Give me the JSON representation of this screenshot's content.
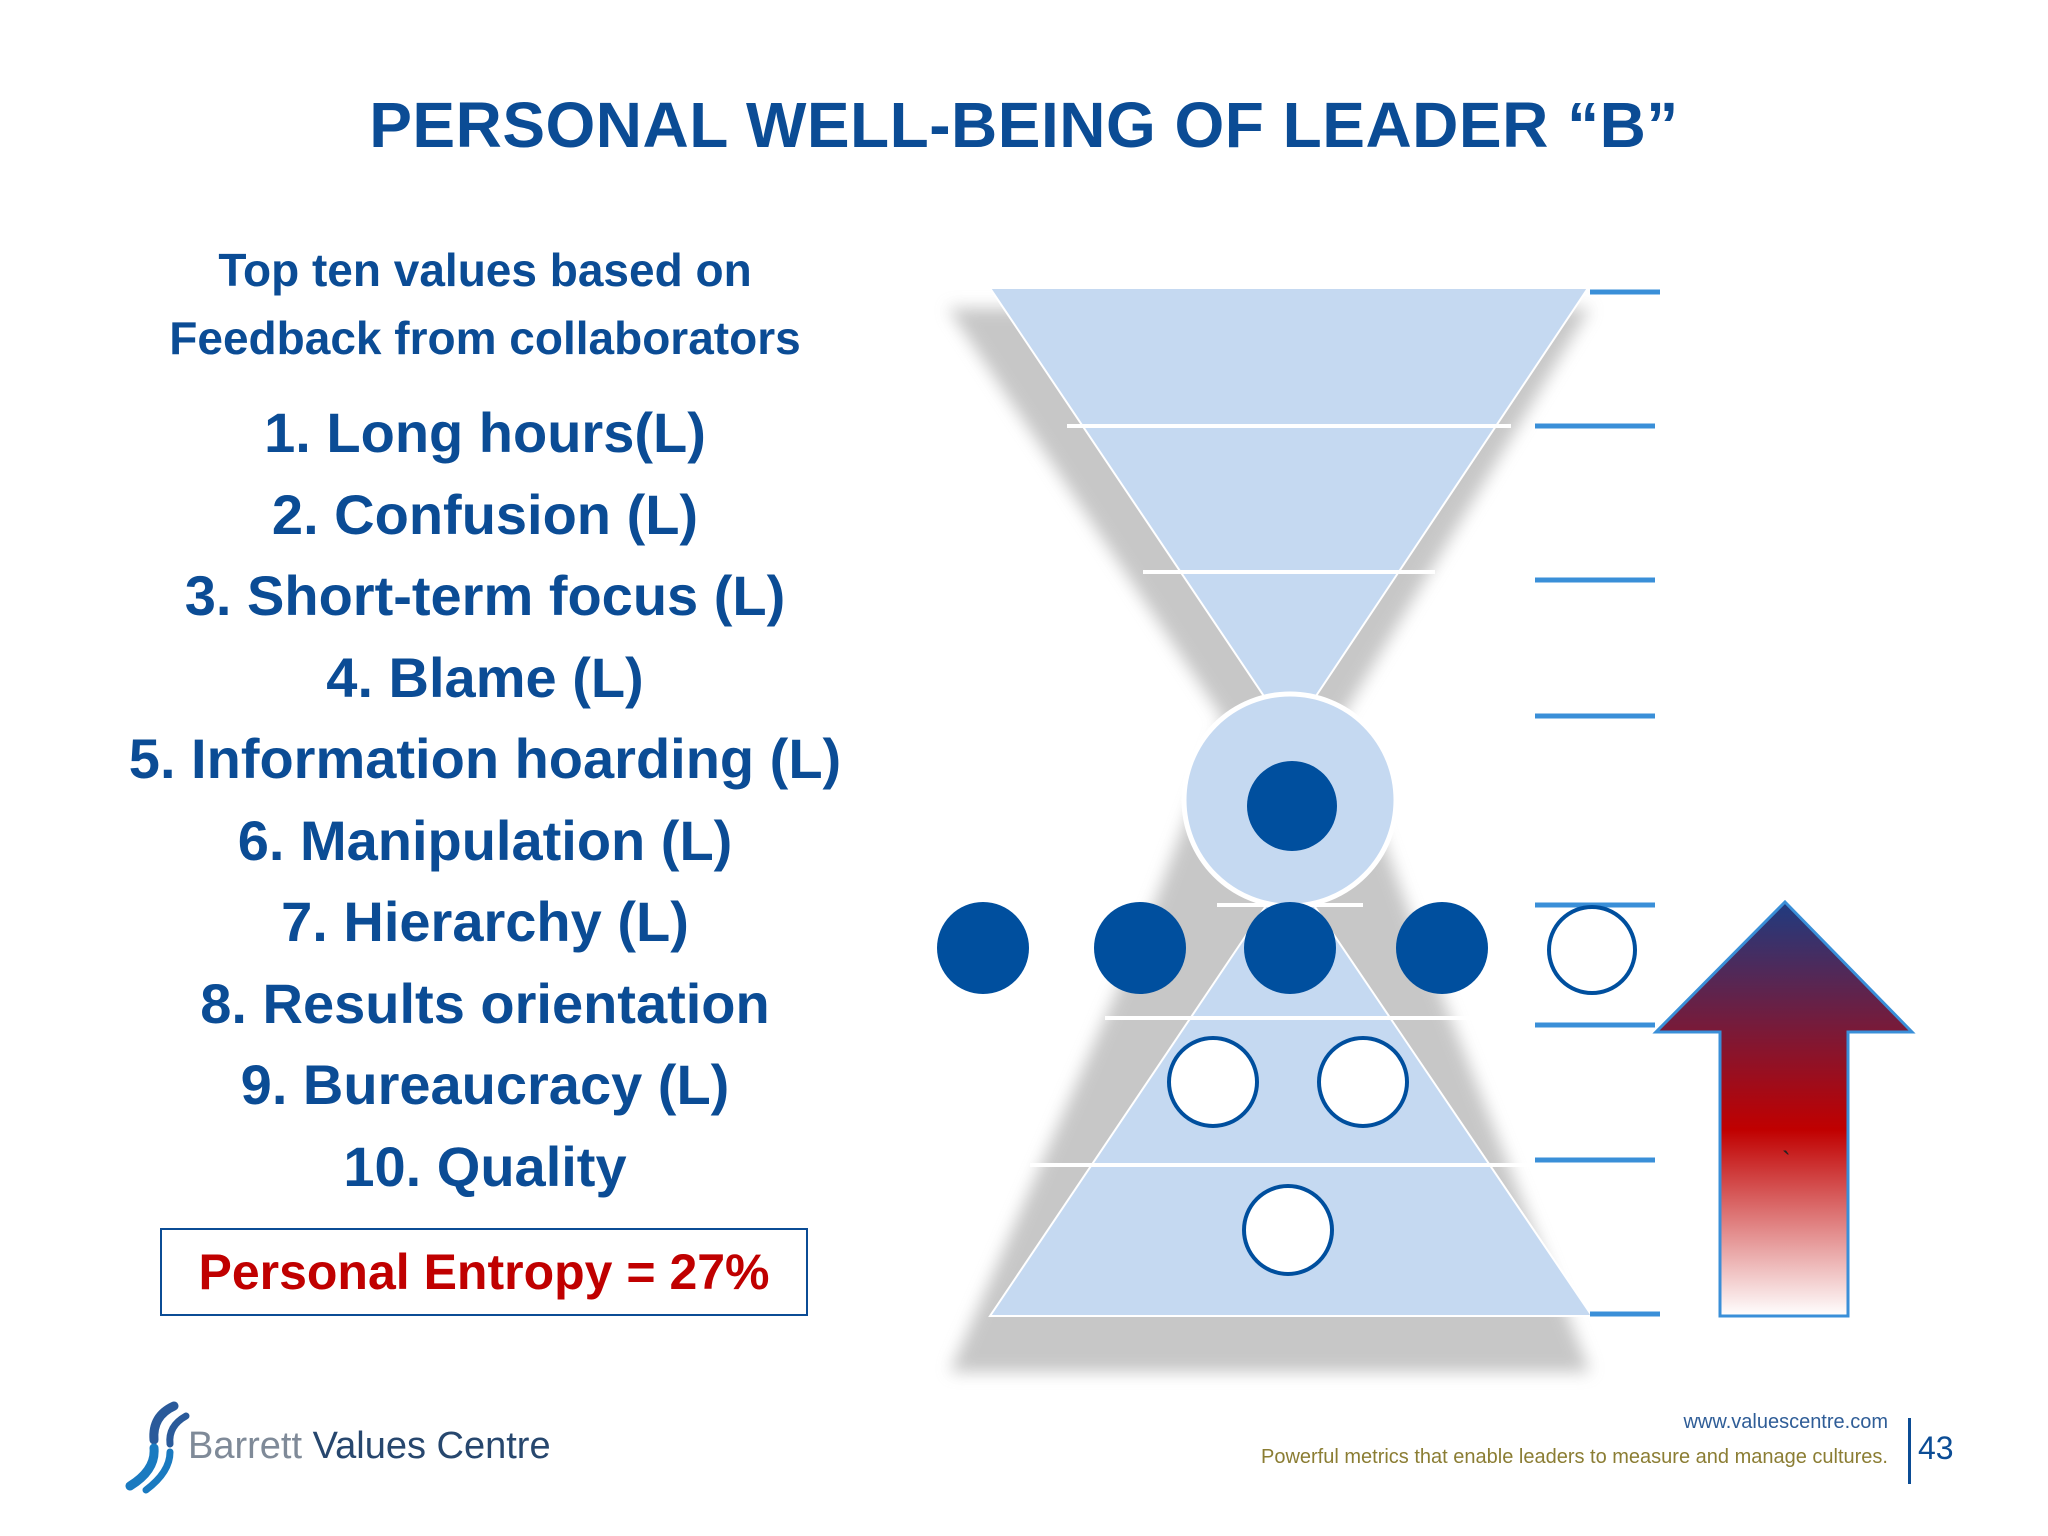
{
  "slide": {
    "title": "PERSONAL WELL-BEING OF LEADER “B”",
    "subtitle_line1": "Top ten values based on",
    "subtitle_line2": "Feedback from collaborators",
    "values": [
      "1. Long hours(L)",
      "2. Confusion (L)",
      "3. Short-term focus (L)",
      "4. Blame (L)",
      "5. Information hoarding (L)",
      "6. Manipulation (L)",
      "7. Hierarchy (L)",
      "8. Results orientation",
      "9. Bureaucracy (L)",
      "10. Quality"
    ],
    "entropy_label": "Personal Entropy = 27%",
    "arrow_mark": "`"
  },
  "diagram": {
    "upper_levels": 3,
    "lower_levels": 3,
    "markers_per_level": [
      0,
      0,
      0,
      1,
      4,
      0,
      0
    ],
    "open_markers_per_level": [
      0,
      0,
      0,
      0,
      1,
      2,
      1
    ],
    "colors": {
      "shape_fill": "#c5d9f1",
      "filled_marker": "#004f9e",
      "open_marker_stroke": "#004f9e",
      "tick": "#3a8fd8",
      "arrow_top": "#1f3b80",
      "arrow_mid": "#c00000",
      "arrow_bottom": "#ffffff"
    }
  },
  "footer": {
    "logo_word1": "Barrett",
    "logo_word2": "Values Centre",
    "url": "www.valuescentre.com",
    "tagline": "Powerful metrics that enable leaders to measure and manage cultures.",
    "page_number": "43"
  }
}
